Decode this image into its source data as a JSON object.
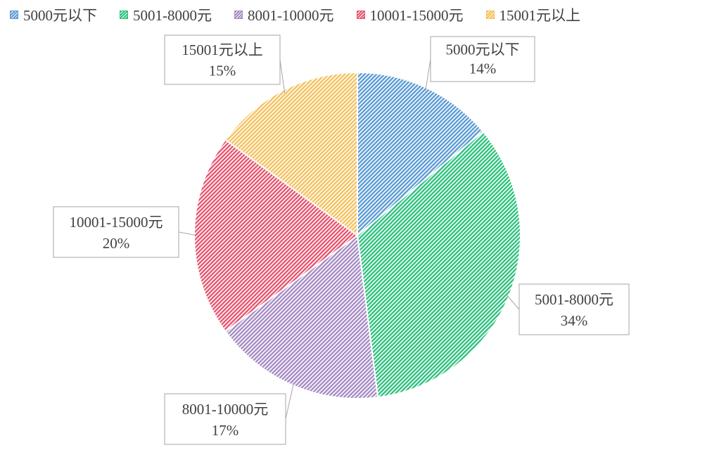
{
  "chart_data": {
    "type": "pie",
    "title": "",
    "legend_position": "top",
    "slices": [
      {
        "label": "5000元以下",
        "value": 14,
        "display": "14%",
        "color": "#5B9BD5"
      },
      {
        "label": "5001-8000元",
        "value": 34,
        "display": "34%",
        "color": "#2EC27E"
      },
      {
        "label": "8001-10000元",
        "value": 17,
        "display": "17%",
        "color": "#A68BC4"
      },
      {
        "label": "10001-15000元",
        "value": 20,
        "display": "20%",
        "color": "#E8546F"
      },
      {
        "label": "15001元以上",
        "value": 15,
        "display": "15%",
        "color": "#F5C15C"
      }
    ]
  }
}
